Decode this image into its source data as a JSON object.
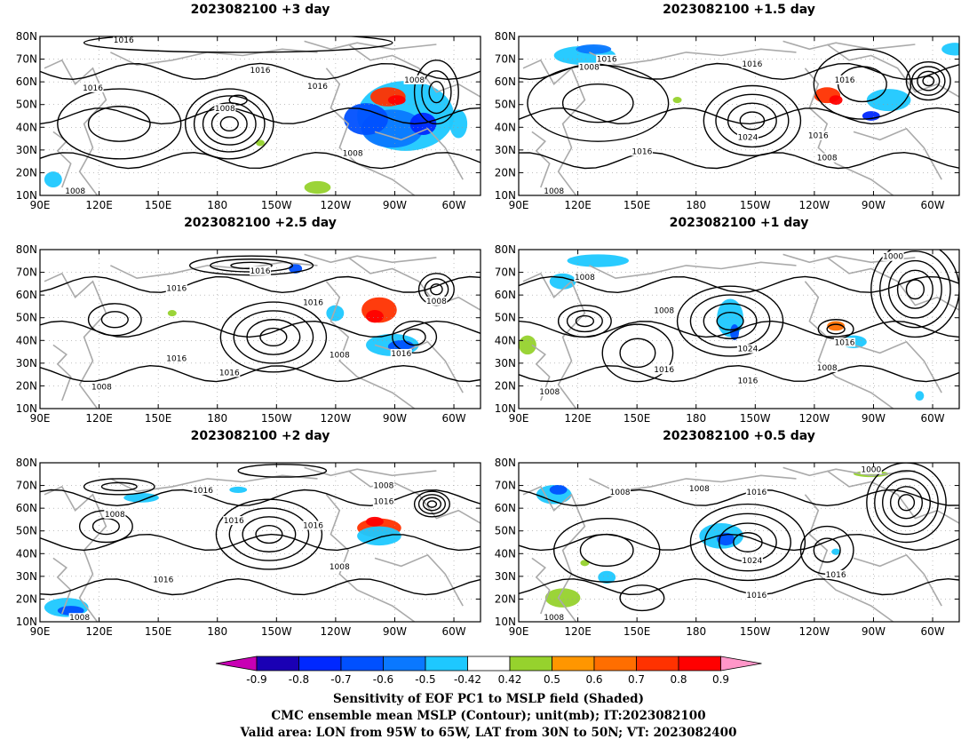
{
  "panels": [
    {
      "id": "p1",
      "title": "2023082100  +3 day",
      "contour_labels": [
        "1016",
        "1016",
        "1016",
        "1016",
        "1008",
        "1008",
        "1008",
        "1008"
      ]
    },
    {
      "id": "p2",
      "title": "2023082100  +1.5 day",
      "contour_labels": [
        "1016",
        "1008",
        "1016",
        "1016",
        "1024",
        "1016",
        "1016",
        "1008",
        "1008"
      ]
    },
    {
      "id": "p3",
      "title": "2023082100  +2.5 day",
      "contour_labels": [
        "1016",
        "1016",
        "1016",
        "1008",
        "1016",
        "1016",
        "1008",
        "1008",
        "1016"
      ]
    },
    {
      "id": "p4",
      "title": "2023082100  +1 day",
      "contour_labels": [
        "1008",
        "1000",
        "1008",
        "1024",
        "1016",
        "1016",
        "1016",
        "1008",
        "1008"
      ]
    },
    {
      "id": "p5",
      "title": "2023082100  +2 day",
      "contour_labels": [
        "1016",
        "1016",
        "1008",
        "1008",
        "1016",
        "1016",
        "1016",
        "1008",
        "1008"
      ]
    },
    {
      "id": "p6",
      "title": "2023082100  +0.5 day",
      "contour_labels": [
        "1000",
        "1008",
        "1008",
        "1016",
        "1024",
        "1016",
        "1016",
        "1008"
      ]
    }
  ],
  "axes": {
    "lat_ticks": [
      "80N",
      "70N",
      "60N",
      "50N",
      "40N",
      "30N",
      "20N",
      "10N"
    ],
    "lon_ticks": [
      "90E",
      "120E",
      "150E",
      "180",
      "150W",
      "120W",
      "90W",
      "60W"
    ]
  },
  "colorbar": {
    "labels": [
      "-0.9",
      "-0.8",
      "-0.7",
      "-0.6",
      "-0.5",
      "-0.42",
      "0.42",
      "0.5",
      "0.6",
      "0.7",
      "0.8",
      "0.9"
    ],
    "colors": [
      "#1a00b4",
      "#0028ff",
      "#0050ff",
      "#0a78ff",
      "#1ec8ff",
      "#ffffff",
      "#96d22d",
      "#ff9600",
      "#ff6e00",
      "#ff3200",
      "#ff0000"
    ],
    "left_arrow_color": "#c800b4",
    "right_arrow_color": "#ff96c8"
  },
  "footer": {
    "line1": "Sensitivity of EOF PC1 to MSLP field (Shaded)",
    "line2": "CMC ensemble mean MSLP (Contour); unit(mb); IT:2023082100",
    "line3": "Valid area: LON from 95W to 65W, LAT from 30N to 50N; VT: 2023082400"
  },
  "colors": {
    "contour": "#000000",
    "coast": "#aaaaaa",
    "grid": "#999999"
  }
}
